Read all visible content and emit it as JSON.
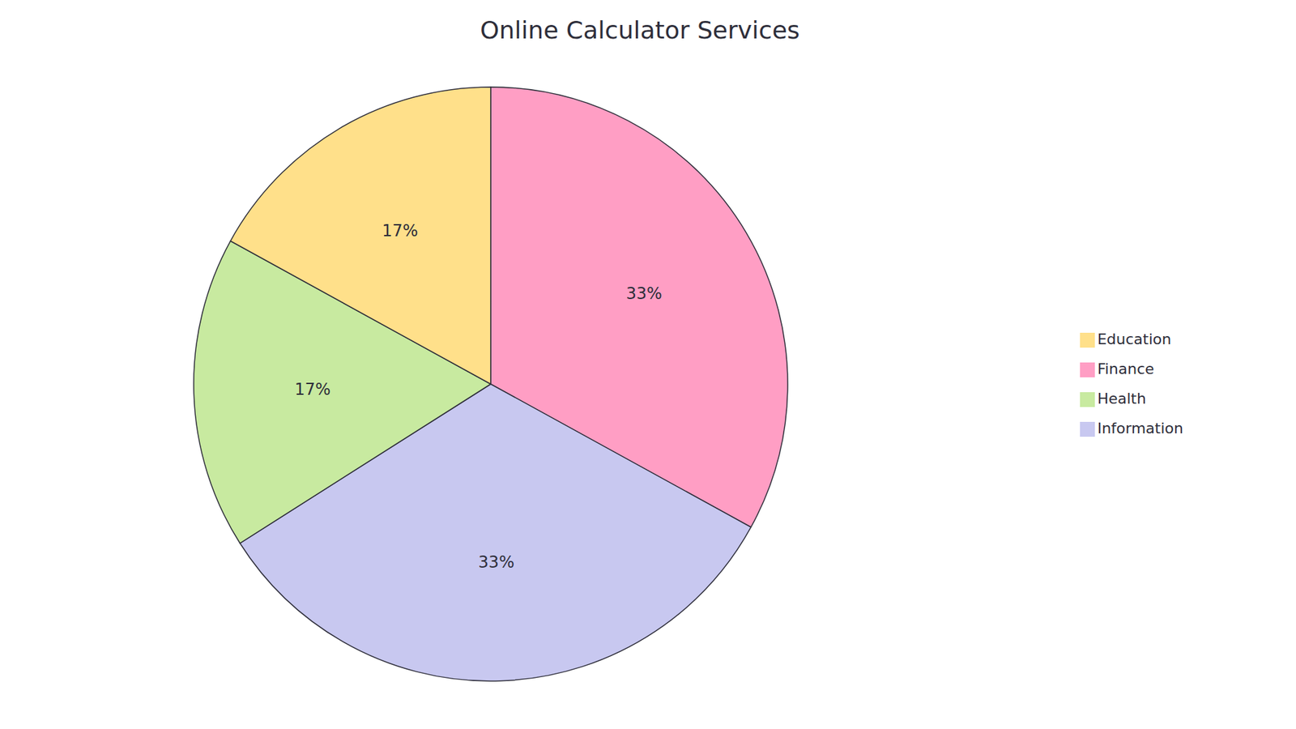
{
  "chart_data": {
    "type": "pie",
    "title": "Online Calculator Services",
    "categories": [
      "Finance",
      "Information",
      "Health",
      "Education"
    ],
    "values": [
      33,
      33,
      17,
      17
    ],
    "value_labels": [
      "33%",
      "33%",
      "17%",
      "17%"
    ],
    "colors": [
      "#FF9EC4",
      "#C8C8F0",
      "#C8EAA0",
      "#FFE08A"
    ],
    "data_labels": true,
    "legend": "right"
  }
}
